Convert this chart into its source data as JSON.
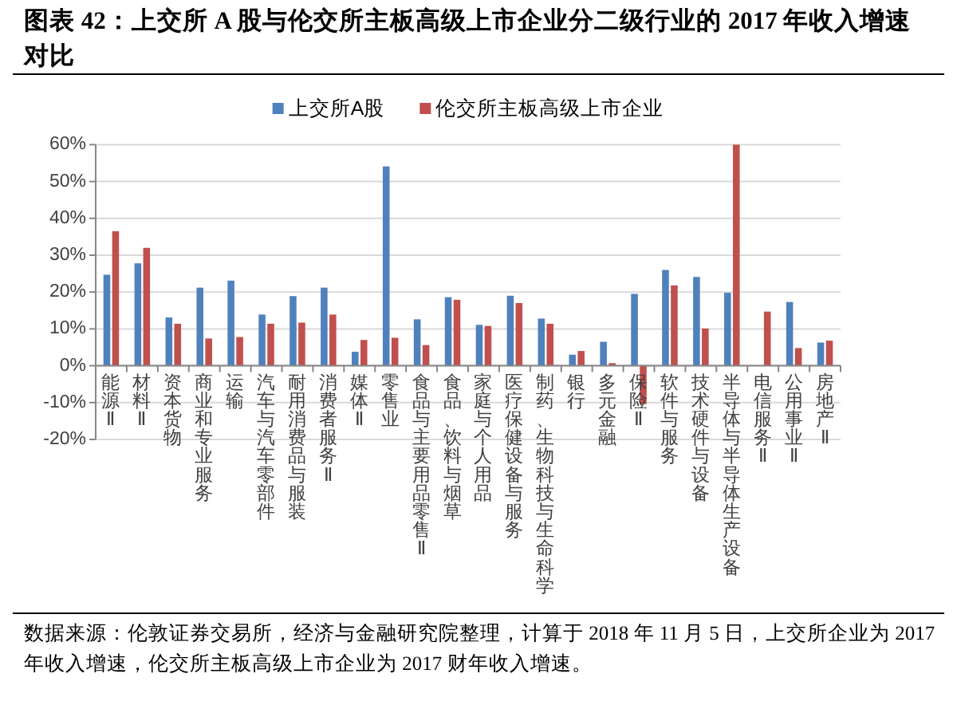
{
  "chart_data": {
    "type": "bar",
    "title": "图表 42：上交所 A 股与伦交所主板高级上市企业分二级行业的 2017 年收入增速对比",
    "categories": [
      "能源Ⅱ",
      "材料Ⅱ",
      "资本货物",
      "商业和专业服务",
      "运输",
      "汽车与汽车零部件",
      "耐用消费品与服装",
      "消费者服务Ⅱ",
      "媒体Ⅱ",
      "零售业",
      "食品与主要用品零售Ⅱ",
      "食品、饮料与烟草",
      "家庭与个人用品",
      "医疗保健设备与服务",
      "制药、生物科技与生命科学",
      "银行",
      "多元金融",
      "保险Ⅱ",
      "软件与服务",
      "技术硬件与设备",
      "半导体与半导体生产设备",
      "电信服务Ⅱ",
      "公用事业Ⅱ",
      "房地产Ⅱ"
    ],
    "series": [
      {
        "name": "上交所A股",
        "color": "#4f81bd",
        "values": [
          24.7,
          27.8,
          13.1,
          21.2,
          23.1,
          13.9,
          18.9,
          21.2,
          3.8,
          54.1,
          12.6,
          18.6,
          11.1,
          19.0,
          12.8,
          3.0,
          6.5,
          19.5,
          26.0,
          24.1,
          19.8,
          null,
          17.3,
          6.3
        ]
      },
      {
        "name": "伦交所主板高级上市企业",
        "color": "#c0504d",
        "values": [
          36.5,
          32.0,
          11.4,
          7.4,
          7.8,
          11.4,
          11.7,
          13.9,
          7.0,
          7.6,
          5.6,
          17.9,
          10.8,
          17.0,
          11.4,
          4.0,
          0.7,
          -10.4,
          21.8,
          10.1,
          60.0,
          14.7,
          4.8,
          6.8
        ]
      }
    ],
    "ylim": [
      -20,
      60
    ],
    "yticks": [
      {
        "value": -20,
        "label": "-20%"
      },
      {
        "value": -10,
        "label": "-10%"
      },
      {
        "value": 0,
        "label": "0%"
      },
      {
        "value": 10,
        "label": "10%"
      },
      {
        "value": 20,
        "label": "20%"
      },
      {
        "value": 30,
        "label": "30%"
      },
      {
        "value": 40,
        "label": "40%"
      },
      {
        "value": 50,
        "label": "50%"
      },
      {
        "value": 60,
        "label": "60%"
      }
    ],
    "grid": "y",
    "legend": "top",
    "annotations": [
      "数据来源：伦敦证券交易所，经济与金融研究院整理，计算于 2018 年 11 月 5 日，上交所企业为 2017 年收入增速，伦交所主板高级上市企业为 2017 财年收入增速。"
    ]
  }
}
